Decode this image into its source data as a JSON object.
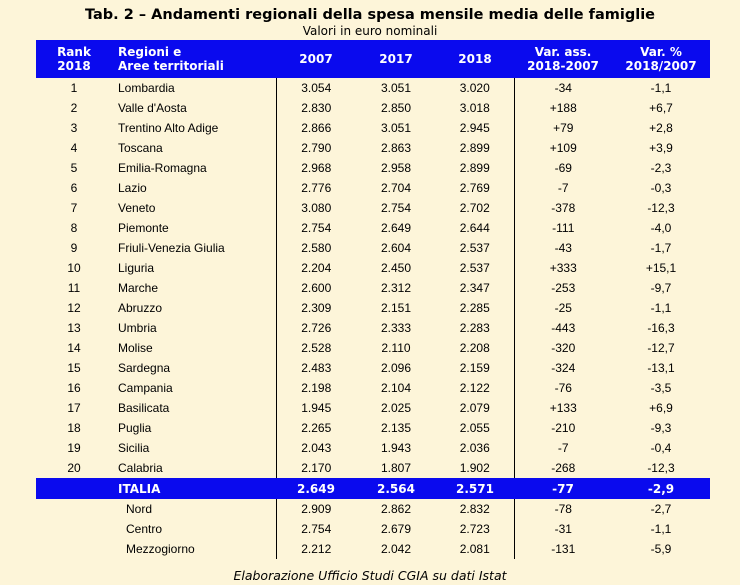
{
  "title": "Tab. 2 – Andamenti regionali della spesa mensile media delle famiglie",
  "subtitle": "Valori in euro nominali",
  "headers": {
    "rank": "Rank\n2018",
    "region": "Regioni e\nAree territoriali",
    "y2007": "2007",
    "y2017": "2017",
    "y2018": "2018",
    "var_ass": "Var. ass.\n2018-2007",
    "var_pct": "Var. %\n2018/2007"
  },
  "rows": [
    {
      "rank": "1",
      "region": "Lombardia",
      "y2007": "3.054",
      "y2017": "3.051",
      "y2018": "3.020",
      "var_ass": "-34",
      "var_pct": "-1,1"
    },
    {
      "rank": "2",
      "region": "Valle d'Aosta",
      "y2007": "2.830",
      "y2017": "2.850",
      "y2018": "3.018",
      "var_ass": "+188",
      "var_pct": "+6,7"
    },
    {
      "rank": "3",
      "region": "Trentino Alto Adige",
      "y2007": "2.866",
      "y2017": "3.051",
      "y2018": "2.945",
      "var_ass": "+79",
      "var_pct": "+2,8"
    },
    {
      "rank": "4",
      "region": "Toscana",
      "y2007": "2.790",
      "y2017": "2.863",
      "y2018": "2.899",
      "var_ass": "+109",
      "var_pct": "+3,9"
    },
    {
      "rank": "5",
      "region": "Emilia-Romagna",
      "y2007": "2.968",
      "y2017": "2.958",
      "y2018": "2.899",
      "var_ass": "-69",
      "var_pct": "-2,3"
    },
    {
      "rank": "6",
      "region": "Lazio",
      "y2007": "2.776",
      "y2017": "2.704",
      "y2018": "2.769",
      "var_ass": "-7",
      "var_pct": "-0,3"
    },
    {
      "rank": "7",
      "region": "Veneto",
      "y2007": "3.080",
      "y2017": "2.754",
      "y2018": "2.702",
      "var_ass": "-378",
      "var_pct": "-12,3"
    },
    {
      "rank": "8",
      "region": "Piemonte",
      "y2007": "2.754",
      "y2017": "2.649",
      "y2018": "2.644",
      "var_ass": "-111",
      "var_pct": "-4,0"
    },
    {
      "rank": "9",
      "region": "Friuli-Venezia Giulia",
      "y2007": "2.580",
      "y2017": "2.604",
      "y2018": "2.537",
      "var_ass": "-43",
      "var_pct": "-1,7"
    },
    {
      "rank": "10",
      "region": "Liguria",
      "y2007": "2.204",
      "y2017": "2.450",
      "y2018": "2.537",
      "var_ass": "+333",
      "var_pct": "+15,1"
    },
    {
      "rank": "11",
      "region": "Marche",
      "y2007": "2.600",
      "y2017": "2.312",
      "y2018": "2.347",
      "var_ass": "-253",
      "var_pct": "-9,7"
    },
    {
      "rank": "12",
      "region": "Abruzzo",
      "y2007": "2.309",
      "y2017": "2.151",
      "y2018": "2.285",
      "var_ass": "-25",
      "var_pct": "-1,1"
    },
    {
      "rank": "13",
      "region": "Umbria",
      "y2007": "2.726",
      "y2017": "2.333",
      "y2018": "2.283",
      "var_ass": "-443",
      "var_pct": "-16,3"
    },
    {
      "rank": "14",
      "region": "Molise",
      "y2007": "2.528",
      "y2017": "2.110",
      "y2018": "2.208",
      "var_ass": "-320",
      "var_pct": "-12,7"
    },
    {
      "rank": "15",
      "region": "Sardegna",
      "y2007": "2.483",
      "y2017": "2.096",
      "y2018": "2.159",
      "var_ass": "-324",
      "var_pct": "-13,1"
    },
    {
      "rank": "16",
      "region": "Campania",
      "y2007": "2.198",
      "y2017": "2.104",
      "y2018": "2.122",
      "var_ass": "-76",
      "var_pct": "-3,5"
    },
    {
      "rank": "17",
      "region": "Basilicata",
      "y2007": "1.945",
      "y2017": "2.025",
      "y2018": "2.079",
      "var_ass": "+133",
      "var_pct": "+6,9"
    },
    {
      "rank": "18",
      "region": "Puglia",
      "y2007": "2.265",
      "y2017": "2.135",
      "y2018": "2.055",
      "var_ass": "-210",
      "var_pct": "-9,3"
    },
    {
      "rank": "19",
      "region": "Sicilia",
      "y2007": "2.043",
      "y2017": "1.943",
      "y2018": "2.036",
      "var_ass": "-7",
      "var_pct": "-0,4"
    },
    {
      "rank": "20",
      "region": "Calabria",
      "y2007": "2.170",
      "y2017": "1.807",
      "y2018": "1.902",
      "var_ass": "-268",
      "var_pct": "-12,3"
    }
  ],
  "italia": {
    "region": "ITALIA",
    "y2007": "2.649",
    "y2017": "2.564",
    "y2018": "2.571",
    "var_ass": "-77",
    "var_pct": "-2,9"
  },
  "areas": [
    {
      "region": "Nord",
      "y2007": "2.909",
      "y2017": "2.862",
      "y2018": "2.832",
      "var_ass": "-78",
      "var_pct": "-2,7"
    },
    {
      "region": "Centro",
      "y2007": "2.754",
      "y2017": "2.679",
      "y2018": "2.723",
      "var_ass": "-31",
      "var_pct": "-1,1"
    },
    {
      "region": "Mezzogiorno",
      "y2007": "2.212",
      "y2017": "2.042",
      "y2018": "2.081",
      "var_ass": "-131",
      "var_pct": "-5,9"
    }
  ],
  "footer": "Elaborazione Ufficio Studi CGIA su dati Istat",
  "colors": {
    "header_bg": "#0a0aee",
    "page_bg": "#fdf5d9"
  }
}
